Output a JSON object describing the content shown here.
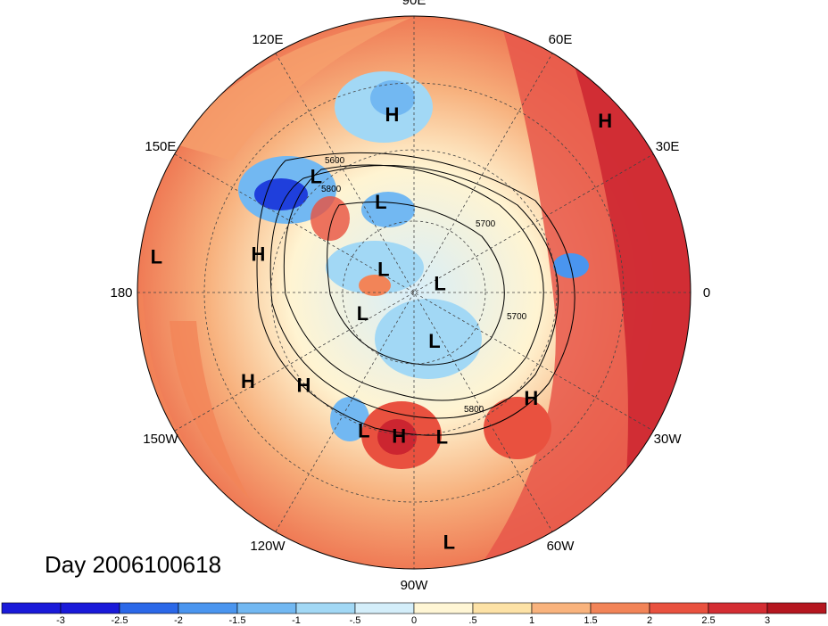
{
  "map": {
    "projection": "north-polar-stereographic",
    "center_label": "Day 2006100618",
    "longitude_labels": [
      {
        "text": "90E",
        "angle": 90
      },
      {
        "text": "60E",
        "angle": 60
      },
      {
        "text": "30E",
        "angle": 30
      },
      {
        "text": "0",
        "angle": 0
      },
      {
        "text": "30W",
        "angle": -30
      },
      {
        "text": "60W",
        "angle": -60
      },
      {
        "text": "90W",
        "angle": -90
      },
      {
        "text": "120W",
        "angle": -120
      },
      {
        "text": "150W",
        "angle": -150
      },
      {
        "text": "180",
        "angle": 180
      },
      {
        "text": "150E",
        "angle": 150
      },
      {
        "text": "120E",
        "angle": 120
      }
    ],
    "pressure_systems": [
      {
        "type": "H",
        "lon": 97,
        "r": 0.65
      },
      {
        "type": "H",
        "lon": 42,
        "r": 0.93
      },
      {
        "type": "L",
        "lon": 130,
        "r": 0.55
      },
      {
        "type": "L",
        "lon": 110,
        "r": 0.35
      },
      {
        "type": "L",
        "lon": 172,
        "r": 0.94
      },
      {
        "type": "H",
        "lon": 166,
        "r": 0.58
      },
      {
        "type": "L",
        "lon": 142,
        "r": 0.14
      },
      {
        "type": "L",
        "lon": 20,
        "r": 0.1
      },
      {
        "type": "L",
        "lon": -158,
        "r": 0.2
      },
      {
        "type": "L",
        "lon": -67,
        "r": 0.19
      },
      {
        "type": "H",
        "lon": -140,
        "r": 0.52
      },
      {
        "type": "H",
        "lon": -152,
        "r": 0.68
      },
      {
        "type": "L",
        "lon": -110,
        "r": 0.53
      },
      {
        "type": "H",
        "lon": -96,
        "r": 0.52
      },
      {
        "type": "L",
        "lon": -79,
        "r": 0.53
      },
      {
        "type": "H",
        "lon": -42,
        "r": 0.57
      },
      {
        "type": "L",
        "lon": -82,
        "r": 0.91
      }
    ],
    "contour_labels": [
      "5600",
      "5700",
      "5700",
      "5800",
      "5800"
    ]
  },
  "colorbar": {
    "ticks": [
      "-3",
      "-2.5",
      "-2",
      "-1.5",
      "-1",
      "-.5",
      "0",
      ".5",
      "1",
      "1.5",
      "2",
      "2.5",
      "3"
    ],
    "colors": [
      "#1a1ad9",
      "#2b68e8",
      "#4a95ef",
      "#72b8f2",
      "#a2d8f5",
      "#d4eefa",
      "#fff6d5",
      "#fde2a6",
      "#f9b37d",
      "#f28458",
      "#e9513f",
      "#d42d33",
      "#b5161f"
    ]
  }
}
